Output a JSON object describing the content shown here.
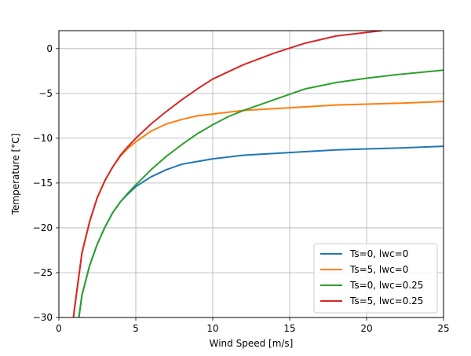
{
  "chart_data": {
    "type": "line",
    "title": "",
    "xlabel": "Wind Speed [m/s]",
    "ylabel": "Temperature [°C]",
    "xlim": [
      0,
      25
    ],
    "ylim": [
      -30,
      2
    ],
    "xticks": [
      0,
      5,
      10,
      15,
      20,
      25
    ],
    "yticks": [
      0,
      -5,
      -10,
      -15,
      -20,
      -25,
      -30
    ],
    "grid": true,
    "legend_position": "lower-right",
    "series": [
      {
        "name": "Ts=0, lwc=0",
        "color": "#1f77b4",
        "x": [
          1.3,
          1.5,
          2,
          2.5,
          3,
          3.5,
          4,
          4.5,
          5,
          6,
          7,
          8,
          9,
          10,
          12,
          14,
          16,
          18,
          20,
          22,
          25
        ],
        "y": [
          -30,
          -27.5,
          -24.2,
          -21.8,
          -19.9,
          -18.3,
          -17.1,
          -16.2,
          -15.4,
          -14.3,
          -13.5,
          -12.9,
          -12.6,
          -12.3,
          -11.9,
          -11.7,
          -11.5,
          -11.3,
          -11.2,
          -11.1,
          -10.9
        ]
      },
      {
        "name": "Ts=5, lwc=0",
        "color": "#ff7f0e",
        "x": [
          0.95,
          1,
          1.5,
          2,
          2.5,
          3,
          3.5,
          4,
          4.5,
          5,
          6,
          7,
          8,
          9,
          10,
          12,
          14,
          16,
          18,
          20,
          22,
          25
        ],
        "y": [
          -30,
          -29.2,
          -22.8,
          -19.3,
          -16.6,
          -14.7,
          -13.2,
          -12.0,
          -11.1,
          -10.4,
          -9.2,
          -8.4,
          -7.9,
          -7.5,
          -7.3,
          -6.9,
          -6.7,
          -6.5,
          -6.3,
          -6.2,
          -6.1,
          -5.9
        ]
      },
      {
        "name": "Ts=0, lwc=0.25",
        "color": "#2ca02c",
        "x": [
          1.3,
          1.5,
          2,
          2.5,
          3,
          3.5,
          4,
          4.5,
          5,
          6,
          7,
          8,
          9,
          10,
          11,
          12,
          14,
          16,
          18,
          20,
          22,
          25
        ],
        "y": [
          -30,
          -27.5,
          -24.2,
          -21.8,
          -19.9,
          -18.3,
          -17.1,
          -16.1,
          -15.2,
          -13.5,
          -12.0,
          -10.7,
          -9.5,
          -8.5,
          -7.6,
          -6.9,
          -5.7,
          -4.5,
          -3.8,
          -3.3,
          -2.9,
          -2.4
        ]
      },
      {
        "name": "Ts=5, lwc=0.25",
        "color": "#d62728",
        "x": [
          0.95,
          1,
          1.5,
          2,
          2.5,
          3,
          3.5,
          4,
          4.5,
          5,
          6,
          7,
          8,
          9,
          10,
          12,
          14,
          16,
          18,
          20,
          21
        ],
        "y": [
          -30,
          -29.2,
          -22.8,
          -19.3,
          -16.6,
          -14.7,
          -13.2,
          -11.9,
          -10.9,
          -10.0,
          -8.4,
          -7.0,
          -5.7,
          -4.5,
          -3.4,
          -1.8,
          -0.5,
          0.6,
          1.4,
          1.8,
          2.0
        ]
      }
    ]
  }
}
